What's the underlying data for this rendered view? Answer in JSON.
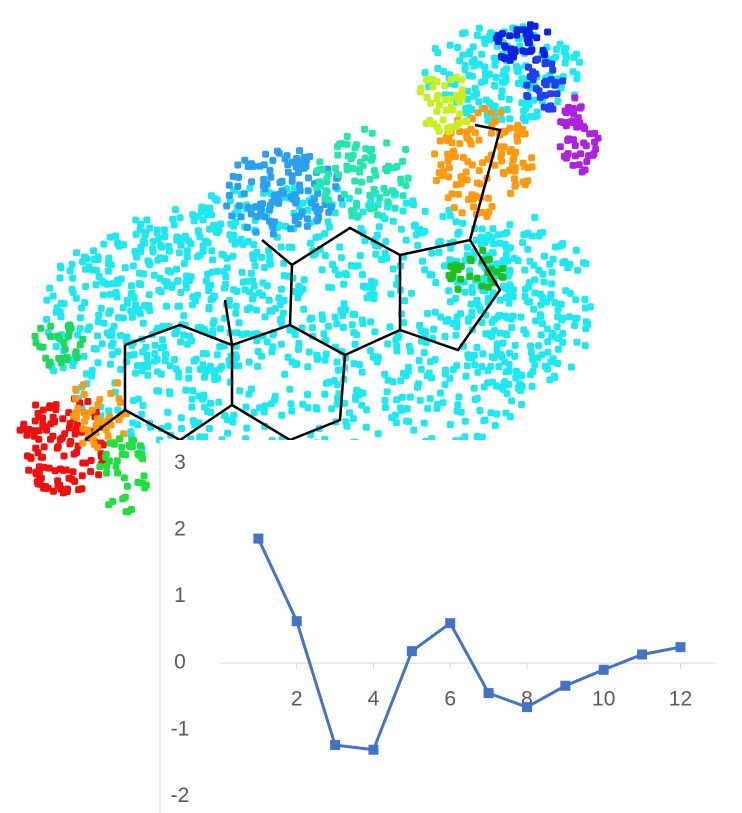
{
  "chart_data": {
    "type": "line",
    "x": [
      1,
      2,
      3,
      4,
      5,
      6,
      7,
      8,
      9,
      10,
      11,
      12
    ],
    "series": [
      {
        "color": "#4472c4",
        "values": [
          1.87,
          0.63,
          -1.23,
          -1.3,
          0.18,
          0.6,
          -0.45,
          -0.66,
          -0.34,
          -0.1,
          0.13,
          0.24
        ]
      }
    ],
    "xlim": [
      0,
      12.9
    ],
    "xticks": [
      2,
      4,
      6,
      8,
      10,
      12
    ],
    "ylim": [
      -2.25,
      3.35
    ],
    "yticks": [
      -2,
      -1,
      0,
      1,
      2,
      3
    ]
  }
}
